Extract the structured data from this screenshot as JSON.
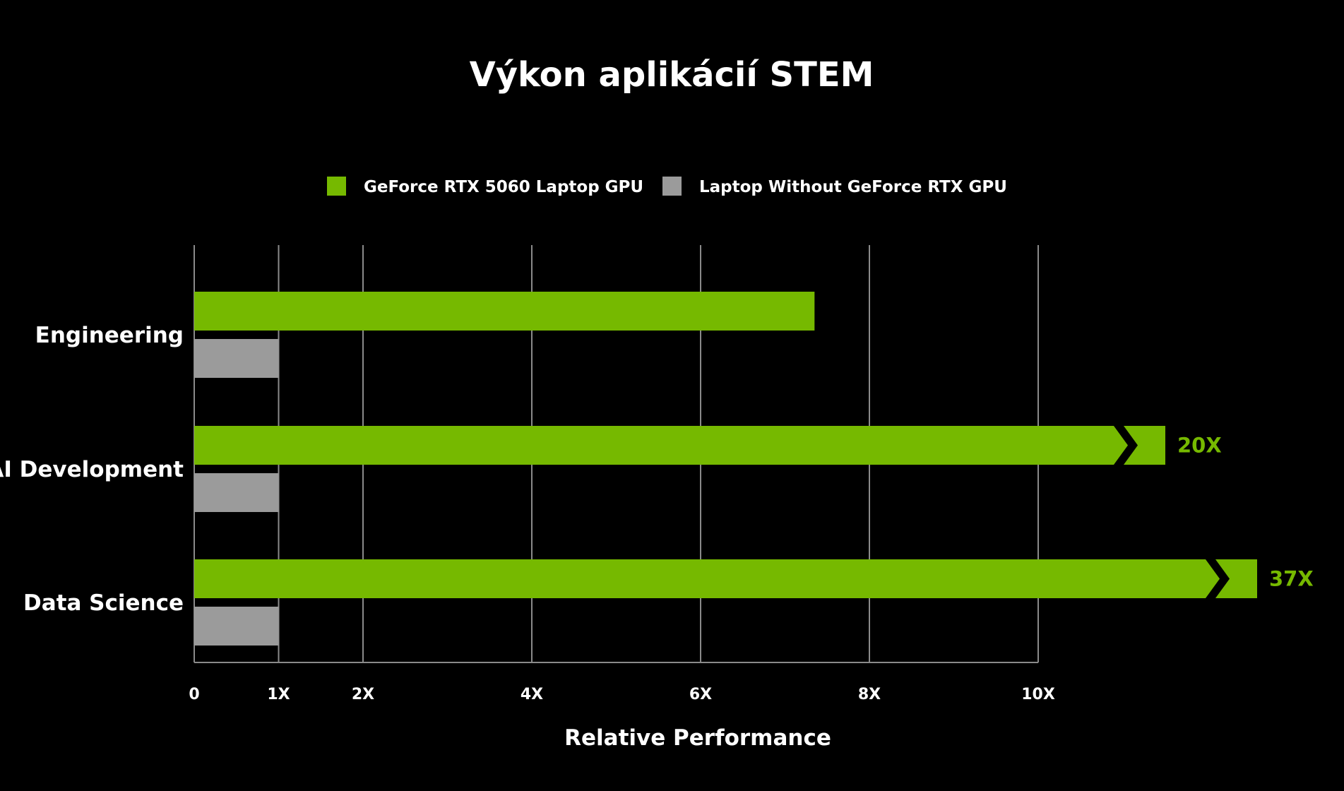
{
  "chart_data": {
    "type": "bar",
    "orientation": "horizontal",
    "title": "Výkon aplikácií STEM",
    "xlabel": "Relative Performance",
    "ylabel": "",
    "categories": [
      "Engineering",
      "AI Development",
      "Data Science"
    ],
    "series": [
      {
        "name": "GeForce RTX 5060 Laptop GPU",
        "color": "#76B900",
        "values": [
          7.35,
          20,
          37
        ],
        "data_labels": [
          "",
          "20X",
          "37X"
        ]
      },
      {
        "name": "Laptop Without GeForce RTX GPU",
        "color": "#9B9B9B",
        "values": [
          1,
          1,
          1
        ],
        "data_labels": [
          "",
          "",
          ""
        ]
      }
    ],
    "x_ticks": [
      {
        "value": 0,
        "label": "0"
      },
      {
        "value": 1,
        "label": "1X"
      },
      {
        "value": 2,
        "label": "2X"
      },
      {
        "value": 4,
        "label": "4X"
      },
      {
        "value": 6,
        "label": "6X"
      },
      {
        "value": 8,
        "label": "8X"
      },
      {
        "value": 10,
        "label": "10X"
      }
    ],
    "xlim": [
      0,
      10
    ],
    "axis_break": true,
    "grid": true,
    "legend_position": "top-center"
  },
  "colors": {
    "background": "#000000",
    "text": "#FFFFFF",
    "grid": "#8A8A8A",
    "accent": "#76B900"
  }
}
